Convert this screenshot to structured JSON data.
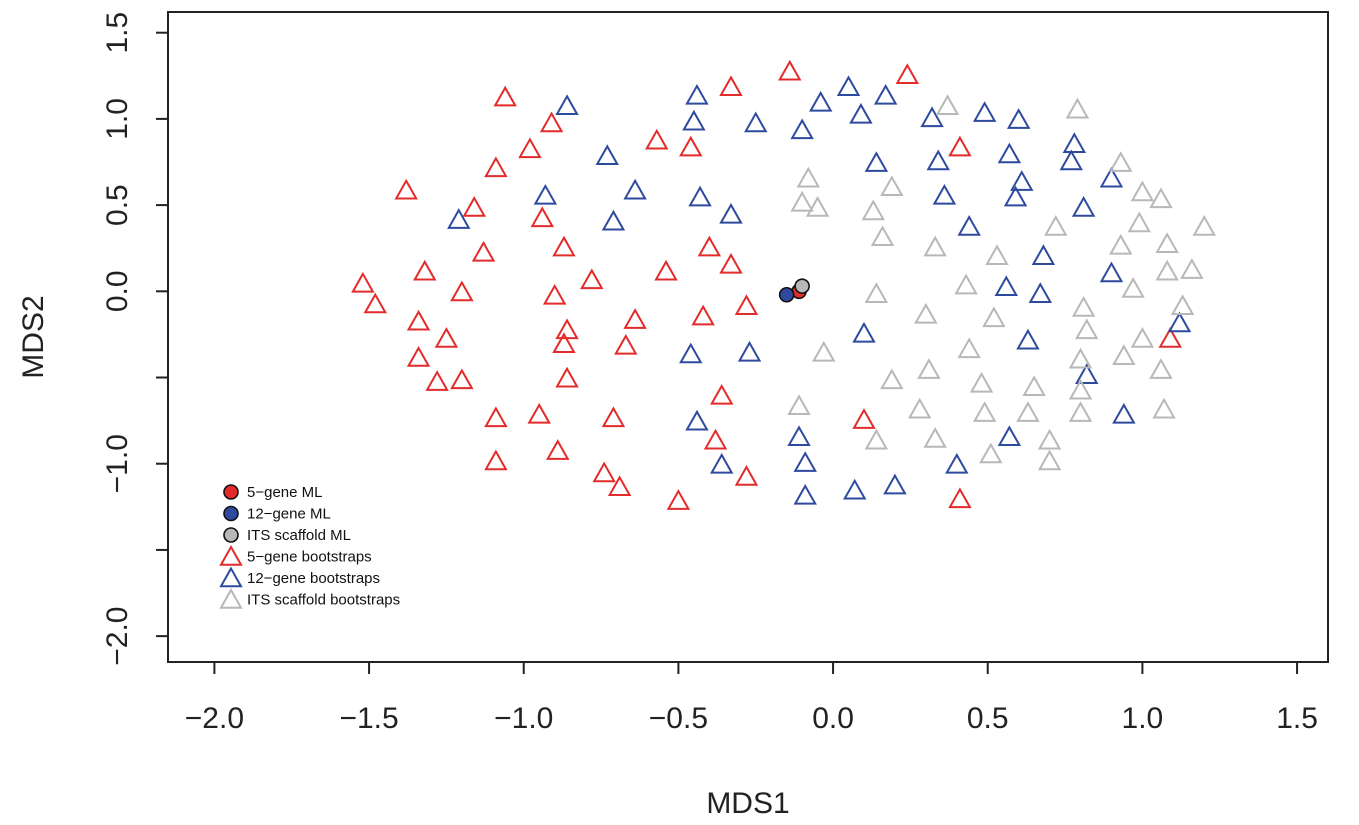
{
  "chart_data": {
    "type": "scatter",
    "xlabel": "MDS1",
    "ylabel": "MDS2",
    "xlim": [
      -2.15,
      1.6
    ],
    "ylim": [
      -2.15,
      1.62
    ],
    "x_ticks": [
      -2.0,
      -1.5,
      -1.0,
      -0.5,
      0.0,
      0.5,
      1.0,
      1.5
    ],
    "x_tick_labels": [
      "−2.0",
      "−1.5",
      "−1.0",
      "−0.5",
      "0.0",
      "0.5",
      "1.0",
      "1.5"
    ],
    "y_ticks": [
      -2.0,
      -1.5,
      -1.0,
      -0.5,
      0.0,
      0.5,
      1.0,
      1.5
    ],
    "y_tick_labels": [
      "−2.0",
      "",
      "−1.0",
      "",
      "0.0",
      "0.5",
      "1.0",
      "1.5"
    ],
    "legend_position": "bottom-left",
    "series": [
      {
        "name": "5−gene ML",
        "marker": "circle-filled",
        "color": "#e32b2b",
        "points": [
          [
            -0.11,
            0.0
          ]
        ]
      },
      {
        "name": "12−gene ML",
        "marker": "circle-filled",
        "color": "#2e4a9e",
        "points": [
          [
            -0.15,
            -0.02
          ]
        ]
      },
      {
        "name": "ITS scaffold ML",
        "marker": "circle-filled",
        "color": "#b8b8b8",
        "points": [
          [
            -0.1,
            0.03
          ]
        ]
      },
      {
        "name": "5−gene bootstraps",
        "marker": "triangle-open",
        "color": "#e32b2b",
        "points": [
          [
            -1.52,
            0.04
          ],
          [
            -1.48,
            -0.08
          ],
          [
            -1.38,
            0.58
          ],
          [
            -1.34,
            -0.18
          ],
          [
            -1.34,
            -0.39
          ],
          [
            -1.32,
            0.11
          ],
          [
            -1.28,
            -0.53
          ],
          [
            -1.25,
            -0.28
          ],
          [
            -1.2,
            -0.01
          ],
          [
            -1.2,
            -0.52
          ],
          [
            -1.16,
            0.48
          ],
          [
            -1.13,
            0.22
          ],
          [
            -1.09,
            0.71
          ],
          [
            -1.09,
            -0.74
          ],
          [
            -1.09,
            -0.99
          ],
          [
            -1.06,
            1.12
          ],
          [
            -0.98,
            0.82
          ],
          [
            -0.95,
            -0.72
          ],
          [
            -0.94,
            0.42
          ],
          [
            -0.91,
            0.97
          ],
          [
            -0.9,
            -0.03
          ],
          [
            -0.89,
            -0.93
          ],
          [
            -0.87,
            0.25
          ],
          [
            -0.87,
            -0.31
          ],
          [
            -0.86,
            -0.51
          ],
          [
            -0.86,
            -0.23
          ],
          [
            -0.78,
            0.06
          ],
          [
            -0.74,
            -1.06
          ],
          [
            -0.71,
            -0.74
          ],
          [
            -0.69,
            -1.14
          ],
          [
            -0.67,
            -0.32
          ],
          [
            -0.64,
            -0.17
          ],
          [
            -0.57,
            0.87
          ],
          [
            -0.54,
            0.11
          ],
          [
            -0.5,
            -1.22
          ],
          [
            -0.46,
            0.83
          ],
          [
            -0.42,
            -0.15
          ],
          [
            -0.4,
            0.25
          ],
          [
            -0.38,
            -0.87
          ],
          [
            -0.36,
            -0.61
          ],
          [
            -0.33,
            1.18
          ],
          [
            -0.33,
            0.15
          ],
          [
            -0.28,
            -0.09
          ],
          [
            -0.28,
            -1.08
          ],
          [
            -0.14,
            1.27
          ],
          [
            0.1,
            -0.75
          ],
          [
            0.24,
            1.25
          ],
          [
            0.41,
            0.83
          ],
          [
            0.41,
            -1.21
          ],
          [
            1.09,
            -0.28
          ]
        ]
      },
      {
        "name": "12−gene bootstraps",
        "marker": "triangle-open",
        "color": "#2e4a9e",
        "points": [
          [
            -1.21,
            0.41
          ],
          [
            -0.93,
            0.55
          ],
          [
            -0.86,
            1.07
          ],
          [
            -0.73,
            0.78
          ],
          [
            -0.71,
            0.4
          ],
          [
            -0.64,
            0.58
          ],
          [
            -0.46,
            -0.37
          ],
          [
            -0.45,
            0.98
          ],
          [
            -0.44,
            1.13
          ],
          [
            -0.44,
            -0.76
          ],
          [
            -0.43,
            0.54
          ],
          [
            -0.36,
            -1.01
          ],
          [
            -0.33,
            0.44
          ],
          [
            -0.27,
            -0.36
          ],
          [
            -0.25,
            0.97
          ],
          [
            -0.11,
            -0.85
          ],
          [
            -0.1,
            0.93
          ],
          [
            -0.09,
            -1.0
          ],
          [
            -0.09,
            -1.19
          ],
          [
            -0.04,
            1.09
          ],
          [
            0.05,
            1.18
          ],
          [
            0.07,
            -1.16
          ],
          [
            0.09,
            1.02
          ],
          [
            0.1,
            -0.25
          ],
          [
            0.14,
            0.74
          ],
          [
            0.17,
            1.13
          ],
          [
            0.2,
            -1.13
          ],
          [
            0.32,
            1.0
          ],
          [
            0.34,
            0.75
          ],
          [
            0.36,
            0.55
          ],
          [
            0.4,
            -1.01
          ],
          [
            0.44,
            0.37
          ],
          [
            0.49,
            1.03
          ],
          [
            0.56,
            0.02
          ],
          [
            0.57,
            0.79
          ],
          [
            0.57,
            -0.85
          ],
          [
            0.59,
            0.54
          ],
          [
            0.6,
            0.99
          ],
          [
            0.61,
            0.63
          ],
          [
            0.63,
            -0.29
          ],
          [
            0.67,
            -0.02
          ],
          [
            0.68,
            0.2
          ],
          [
            0.77,
            0.75
          ],
          [
            0.78,
            0.85
          ],
          [
            0.81,
            0.48
          ],
          [
            0.82,
            -0.49
          ],
          [
            0.9,
            0.65
          ],
          [
            0.9,
            0.1
          ],
          [
            0.94,
            -0.72
          ],
          [
            1.12,
            -0.19
          ]
        ]
      },
      {
        "name": "ITS scaffold bootstraps",
        "marker": "triangle-open",
        "color": "#b8b8b8",
        "points": [
          [
            -0.11,
            -0.67
          ],
          [
            -0.1,
            0.51
          ],
          [
            -0.08,
            0.65
          ],
          [
            -0.03,
            -0.36
          ],
          [
            0.13,
            0.46
          ],
          [
            0.14,
            -0.02
          ],
          [
            0.14,
            -0.87
          ],
          [
            0.16,
            0.31
          ],
          [
            0.19,
            0.6
          ],
          [
            0.19,
            -0.52
          ],
          [
            0.28,
            -0.69
          ],
          [
            0.3,
            -0.14
          ],
          [
            0.31,
            -0.46
          ],
          [
            0.33,
            -0.86
          ],
          [
            0.33,
            0.25
          ],
          [
            0.37,
            1.07
          ],
          [
            0.43,
            0.03
          ],
          [
            0.44,
            -0.34
          ],
          [
            0.48,
            -0.54
          ],
          [
            0.49,
            -0.71
          ],
          [
            0.51,
            -0.95
          ],
          [
            0.52,
            -0.16
          ],
          [
            0.53,
            0.2
          ],
          [
            0.63,
            -0.71
          ],
          [
            0.65,
            -0.56
          ],
          [
            0.7,
            -0.99
          ],
          [
            0.7,
            -0.87
          ],
          [
            0.72,
            0.37
          ],
          [
            0.79,
            1.05
          ],
          [
            0.8,
            -0.4
          ],
          [
            0.8,
            -0.58
          ],
          [
            0.8,
            -0.71
          ],
          [
            0.81,
            -0.1
          ],
          [
            0.82,
            -0.23
          ],
          [
            0.93,
            0.26
          ],
          [
            0.93,
            0.74
          ],
          [
            0.94,
            -0.38
          ],
          [
            0.97,
            0.01
          ],
          [
            0.99,
            0.39
          ],
          [
            1.0,
            0.57
          ],
          [
            1.0,
            -0.28
          ],
          [
            1.06,
            0.53
          ],
          [
            1.06,
            -0.46
          ],
          [
            1.07,
            -0.69
          ],
          [
            1.08,
            0.27
          ],
          [
            1.08,
            0.11
          ],
          [
            1.13,
            -0.09
          ],
          [
            1.16,
            0.12
          ],
          [
            1.2,
            0.37
          ],
          [
            -0.05,
            0.48
          ]
        ]
      }
    ]
  }
}
